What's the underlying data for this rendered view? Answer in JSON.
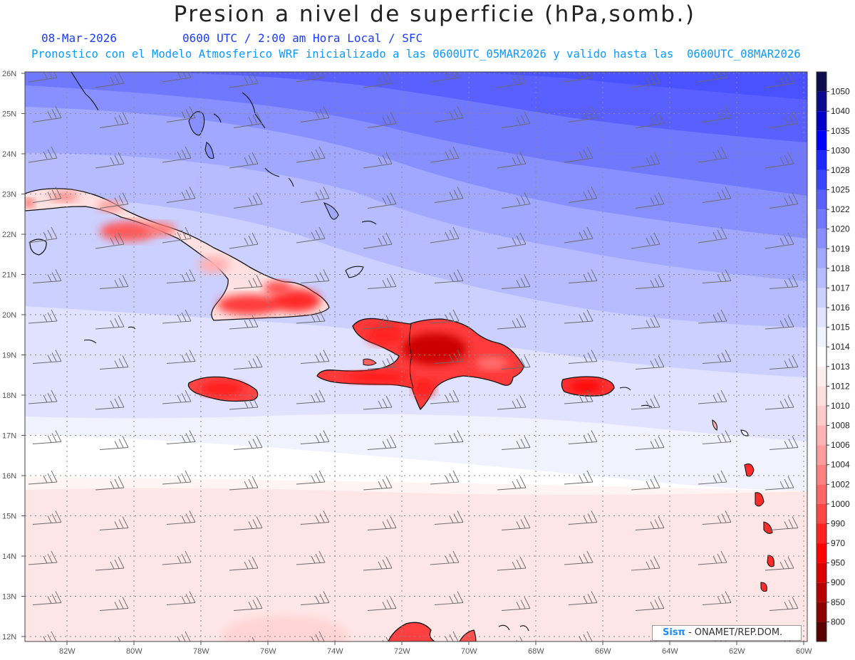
{
  "title": "Presion a nivel de superficie (hPa,somb.)",
  "subtitle_date": "08-Mar-2026",
  "subtitle_time": "0600 UTC / 2:00 am Hora Local / SFC",
  "subtitle_model": "Pronostico con el Modelo Atmosferico WRF inicializado a las 0600UTC_05MAR2026 y valido hasta las  0600UTC_08MAR2026",
  "credit_brand": "Sisπ",
  "credit_text": "- ONAMET/REP.DOM.",
  "lat_labels": [
    "26N",
    "25N",
    "24N",
    "23N",
    "22N",
    "21N",
    "20N",
    "19N",
    "18N",
    "17N",
    "16N",
    "15N",
    "14N",
    "13N",
    "12N"
  ],
  "lon_labels": [
    "82W",
    "80W",
    "78W",
    "76W",
    "74W",
    "72W",
    "70W",
    "68W",
    "66W",
    "64W",
    "62W",
    "60W"
  ],
  "colorbar": [
    {
      "label": "1050",
      "color": "#0c0c4e"
    },
    {
      "label": "1040",
      "color": "#0a0a8c"
    },
    {
      "label": "1035",
      "color": "#0000c8"
    },
    {
      "label": "1030",
      "color": "#0000ff"
    },
    {
      "label": "1028",
      "color": "#1e28ff"
    },
    {
      "label": "1025",
      "color": "#3a46ff"
    },
    {
      "label": "1022",
      "color": "#5a60ff"
    },
    {
      "label": "1020",
      "color": "#7078ff"
    },
    {
      "label": "1019",
      "color": "#8890ff"
    },
    {
      "label": "1018",
      "color": "#a0a8ff"
    },
    {
      "label": "1017",
      "color": "#b6bcff"
    },
    {
      "label": "1016",
      "color": "#ccd0ff"
    },
    {
      "label": "1015",
      "color": "#e0e2ff"
    },
    {
      "label": "1014",
      "color": "#f2f2ff"
    },
    {
      "label": "1013",
      "color": "#ffffff"
    },
    {
      "label": "1012",
      "color": "#ffeeee"
    },
    {
      "label": "1010",
      "color": "#ffdede"
    },
    {
      "label": "1008",
      "color": "#ffcaca"
    },
    {
      "label": "1006",
      "color": "#ffb4b4"
    },
    {
      "label": "1004",
      "color": "#ff9c9c"
    },
    {
      "label": "1002",
      "color": "#ff8282"
    },
    {
      "label": "1000",
      "color": "#ff6666"
    },
    {
      "label": "990",
      "color": "#ff4646"
    },
    {
      "label": "970",
      "color": "#ff2222"
    },
    {
      "label": "950",
      "color": "#ff0000"
    },
    {
      "label": "900",
      "color": "#dc0000"
    },
    {
      "label": "850",
      "color": "#b40000"
    },
    {
      "label": "800",
      "color": "#8c0000"
    },
    {
      "label": "",
      "color": "#5a0000"
    }
  ]
}
